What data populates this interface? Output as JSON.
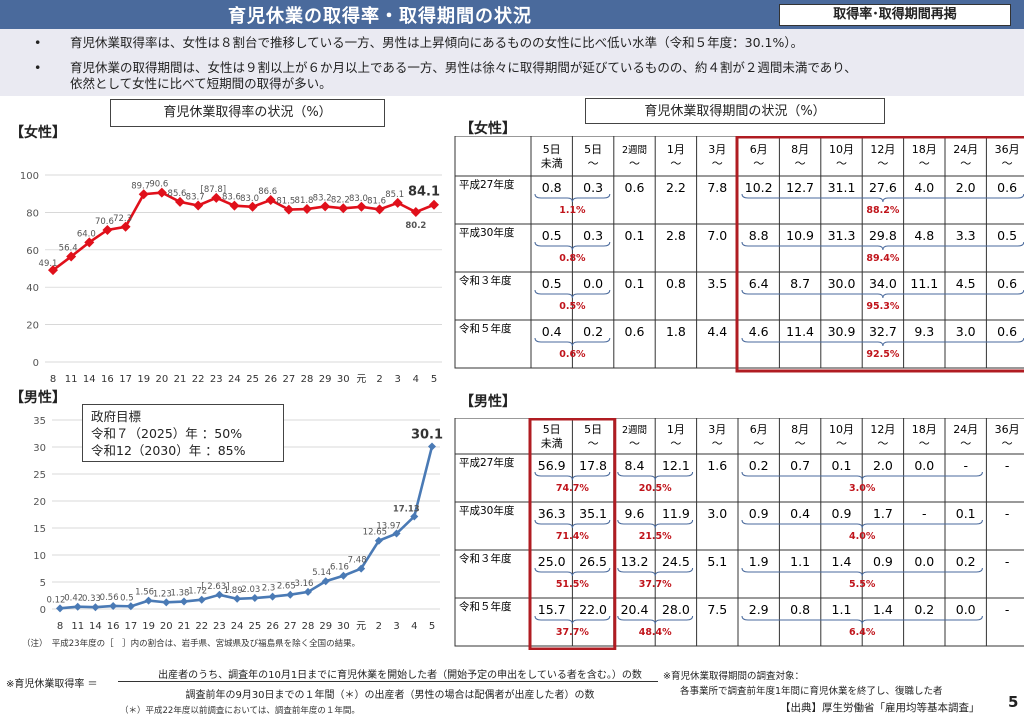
{
  "header": {
    "title": "育児休業の取得率・取得期間の状況",
    "badge": "取得率･取得期間再掲"
  },
  "bullets": [
    "育児休業取得率は、女性は８割台で推移している一方、男性は上昇傾向にあるものの女性に比べ低い水準（令和５年度：30.1%）。",
    "育児休業の取得期間は、女性は９割以上が６か月以上である一方、男性は徐々に取得期間が延びているものの、約４割が２週間未満であり、",
    "依然として女性に比べて短期間の取得が多い。"
  ],
  "rate_title": "育児休業取得率の状況（%）",
  "period_title": "育児休業取得期間の状況（%）",
  "female_label": "【女性】",
  "male_label": "【男性】",
  "goal": {
    "title": "政府目標",
    "l1": "令和７（2025）年 ：50%",
    "l2": "令和12（2030）年 ：85%"
  },
  "note": "（注）　平成23年度の［　］内の割合は、岩手県、宮城県及び福島県を除く全国の結果。",
  "formula": {
    "label": "※育児休業取得率 ＝",
    "num": "出産者のうち、調査年の10月1日までに育児休業を開始した者（開始予定の申出をしている者を含む。）の数",
    "den": "調査前年の9月30日までの１年間（＊）の出産者（男性の場合は配偶者が出産した者）の数",
    "note": "（＊）平成22年度以前調査においては、調査前年度の１年間。"
  },
  "survey_note": {
    "l1": "※育児休業取得期間の調査対象：",
    "l2": "各事業所で調査前年度1年間に育児休業を終了し、復職した者"
  },
  "source": "【出典】厚生労働省「雇用均等基本調査」",
  "page_no": "5",
  "chart_data": [
    {
      "type": "line",
      "title": "育児休業取得率の状況（%）",
      "series": [],
      "x": [
        "8",
        "11",
        "14",
        "16",
        "17",
        "19",
        "20",
        "21",
        "22",
        "23",
        "24",
        "25",
        "26",
        "27",
        "28",
        "29",
        "30",
        "元",
        "2",
        "3",
        "4",
        "5"
      ],
      "values": [
        49.1,
        56.4,
        64.0,
        70.6,
        72.3,
        89.7,
        90.6,
        85.6,
        83.7,
        87.8,
        83.6,
        83.0,
        86.6,
        81.5,
        81.8,
        83.2,
        82.2,
        83.0,
        81.6,
        85.1,
        80.2,
        84.1
      ],
      "labels": [
        "49.1",
        "56.4",
        "64.0",
        "70.6",
        "72.3",
        "89.7",
        "90.6",
        "85.6",
        "83.7",
        "[87.8]",
        "83.6",
        "83.0",
        "86.6",
        "81.5",
        "81.8",
        "83.2",
        "82.2",
        "83.0",
        "81.6",
        "85.1",
        "80.2",
        "84.1"
      ],
      "ylim": [
        0,
        100
      ],
      "yticks": [
        "0",
        "20",
        "40",
        "60",
        "80",
        "100"
      ],
      "color": "#e0101b"
    },
    {
      "type": "line",
      "x": [
        "8",
        "11",
        "14",
        "16",
        "17",
        "19",
        "20",
        "21",
        "22",
        "23",
        "24",
        "25",
        "26",
        "27",
        "28",
        "29",
        "30",
        "元",
        "2",
        "3",
        "4",
        "5"
      ],
      "values": [
        0.12,
        0.42,
        0.33,
        0.56,
        0.5,
        1.56,
        1.23,
        1.38,
        1.72,
        2.63,
        1.89,
        2.03,
        2.3,
        2.65,
        3.16,
        5.14,
        6.16,
        7.48,
        12.65,
        13.97,
        17.13,
        30.1
      ],
      "labels": [
        "0.12",
        "0.42",
        "0.33",
        "0.56",
        "0.5",
        "1.56",
        "1.23",
        "1.38",
        "1.72",
        "[ 2.63]",
        "1.89",
        "2.03",
        "2.3",
        "2.65",
        "3.16",
        "5.14",
        "6.16",
        "7.48",
        "12.65",
        "13.97",
        "17.13",
        "30.1"
      ],
      "ylim": [
        0,
        35
      ],
      "yticks": [
        "0",
        "5",
        "10",
        "15",
        "20",
        "25",
        "30",
        "35"
      ],
      "color": "#4a7ab5"
    },
    {
      "type": "table",
      "name": "女性",
      "headers": [
        "5日\n未満",
        "5日\n～",
        "2週間\n～",
        "1月\n～",
        "3月\n～",
        "6月\n～",
        "8月\n～",
        "10月\n～",
        "12月\n～",
        "18月\n～",
        "24月\n～",
        "36月\n～"
      ],
      "rows": [
        {
          "year": "平成27年度",
          "v": [
            "0.8",
            "0.3",
            "0.6",
            "2.2",
            "7.8",
            "10.2",
            "12.7",
            "31.1",
            "27.6",
            "4.0",
            "2.0",
            "0.6"
          ],
          "s1": "1.1%",
          "s2": "88.2%"
        },
        {
          "year": "平成30年度",
          "v": [
            "0.5",
            "0.3",
            "0.1",
            "2.8",
            "7.0",
            "8.8",
            "10.9",
            "31.3",
            "29.8",
            "4.8",
            "3.3",
            "0.5"
          ],
          "s1": "0.8%",
          "s2": "89.4%"
        },
        {
          "year": "令和３年度",
          "v": [
            "0.5",
            "0.0",
            "0.1",
            "0.8",
            "3.5",
            "6.4",
            "8.7",
            "30.0",
            "34.0",
            "11.1",
            "4.5",
            "0.6"
          ],
          "s1": "0.5%",
          "s2": "95.3%"
        },
        {
          "year": "令和５年度",
          "v": [
            "0.4",
            "0.2",
            "0.6",
            "1.8",
            "4.4",
            "4.6",
            "11.4",
            "30.9",
            "32.7",
            "9.3",
            "3.0",
            "0.6"
          ],
          "s1": "0.6%",
          "s2": "92.5%"
        }
      ]
    },
    {
      "type": "table",
      "name": "男性",
      "headers": [
        "5日\n未満",
        "5日\n～",
        "2週間\n～",
        "1月\n～",
        "3月\n～",
        "6月\n～",
        "8月\n～",
        "10月\n～",
        "12月\n～",
        "18月\n～",
        "24月\n～",
        "36月\n～"
      ],
      "rows": [
        {
          "year": "平成27年度",
          "v": [
            "56.9",
            "17.8",
            "8.4",
            "12.1",
            "1.6",
            "0.2",
            "0.7",
            "0.1",
            "2.0",
            "0.0",
            "-",
            "-"
          ],
          "s1": "74.7%",
          "s2": "20.5%",
          "s3": "3.0%"
        },
        {
          "year": "平成30年度",
          "v": [
            "36.3",
            "35.1",
            "9.6",
            "11.9",
            "3.0",
            "0.9",
            "0.4",
            "0.9",
            "1.7",
            "-",
            "0.1",
            "-"
          ],
          "s1": "71.4%",
          "s2": "21.5%",
          "s3": "4.0%"
        },
        {
          "year": "令和３年度",
          "v": [
            "25.0",
            "26.5",
            "13.2",
            "24.5",
            "5.1",
            "1.9",
            "1.1",
            "1.4",
            "0.9",
            "0.0",
            "0.2",
            "-"
          ],
          "s1": "51.5%",
          "s2": "37.7%",
          "s3": "5.5%"
        },
        {
          "year": "令和５年度",
          "v": [
            "15.7",
            "22.0",
            "20.4",
            "28.0",
            "7.5",
            "2.9",
            "0.8",
            "1.1",
            "1.4",
            "0.2",
            "0.0",
            "-"
          ],
          "s1": "37.7%",
          "s2": "48.4%",
          "s3": "6.4%"
        }
      ]
    }
  ]
}
